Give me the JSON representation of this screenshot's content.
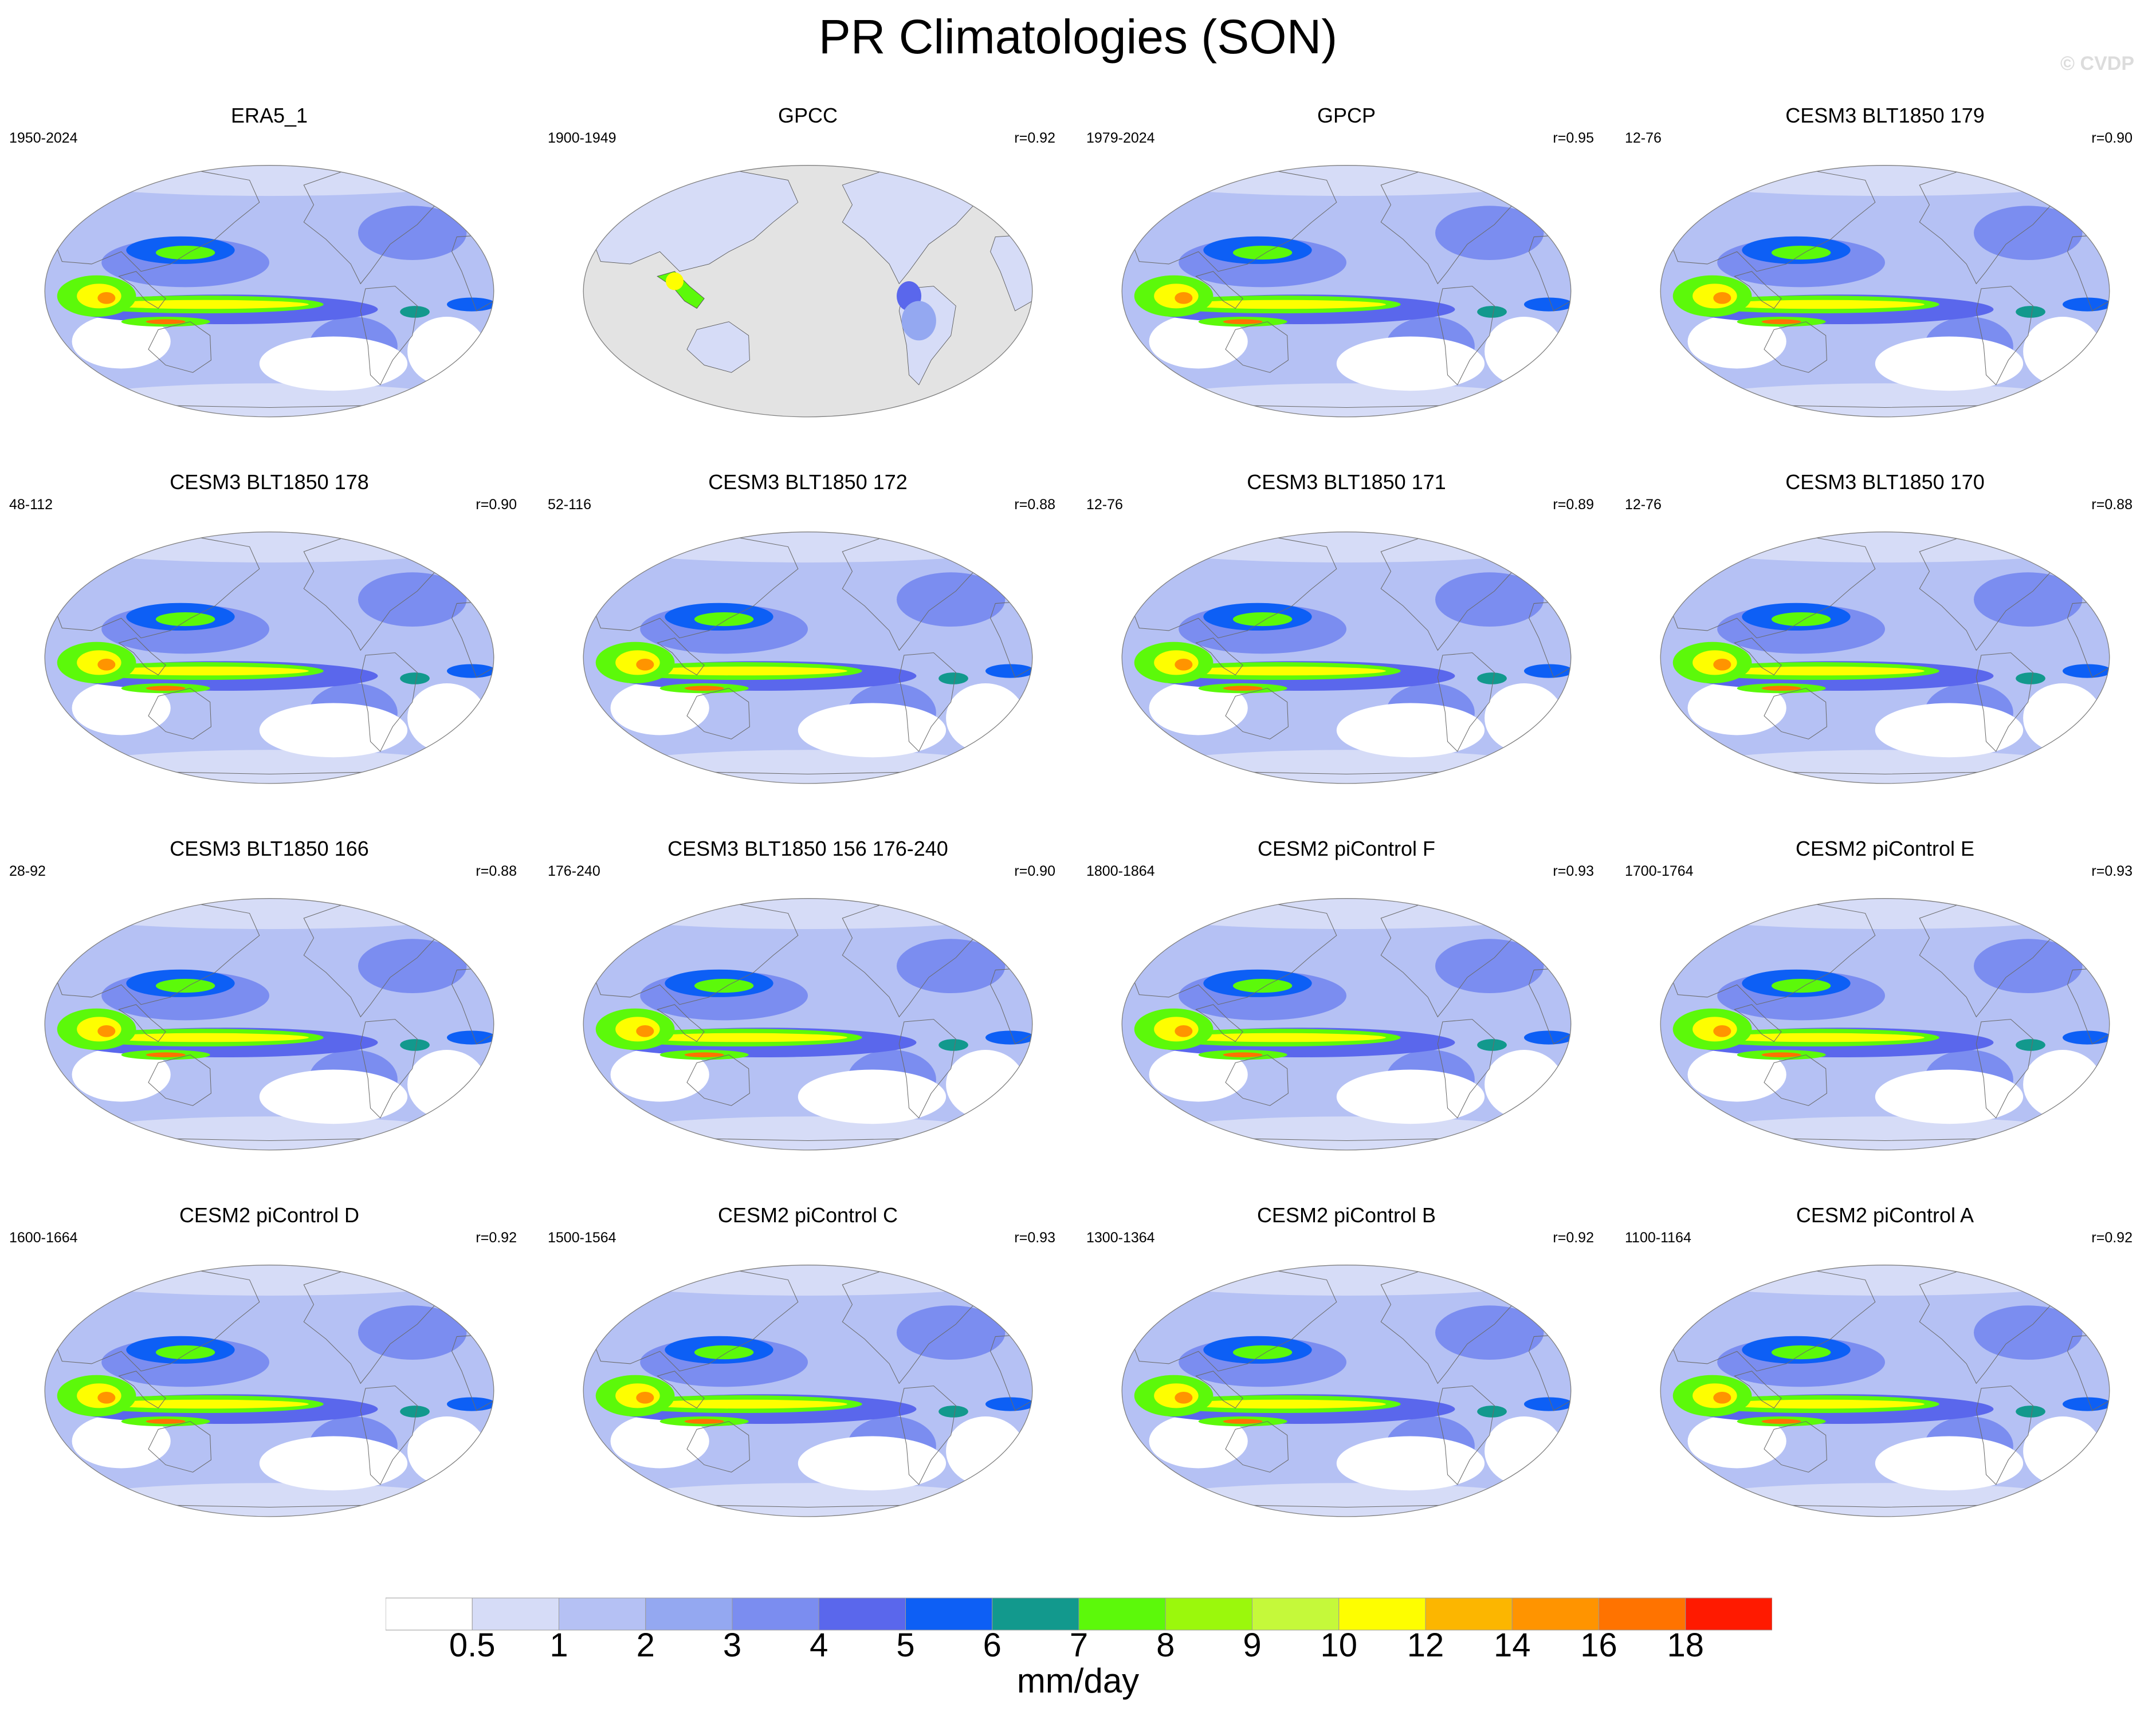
{
  "title": "PR Climatologies (SON)",
  "watermark": "© CVDP",
  "chart_data": {
    "type": "heatmap",
    "title": "PR Climatologies (SON)",
    "variable": "PR",
    "season": "SON",
    "projection": "Robinson (Pacific-centered)",
    "colorbar": {
      "label": "mm/day",
      "levels": [
        "0.5",
        "1",
        "2",
        "3",
        "4",
        "5",
        "6",
        "7",
        "8",
        "9",
        "10",
        "12",
        "14",
        "16",
        "18"
      ],
      "colors": [
        "#ffffff",
        "#d6dcf7",
        "#b5c1f4",
        "#94a8f1",
        "#7b8df0",
        "#5a67ec",
        "#0d5ff5",
        "#12998d",
        "#5cf90a",
        "#9bf80c",
        "#c5f93a",
        "#fefe00",
        "#fcb600",
        "#ff9400",
        "#ff7300",
        "#ff1a00"
      ]
    },
    "panels": [
      {
        "name": "ERA5_1",
        "years": "1950-2024",
        "r": "",
        "kind": "model"
      },
      {
        "name": "GPCC",
        "years": "1900-1949",
        "r": "r=0.92",
        "kind": "land"
      },
      {
        "name": "GPCP",
        "years": "1979-2024",
        "r": "r=0.95",
        "kind": "obs"
      },
      {
        "name": "CESM3 BLT1850 179",
        "years": "12-76",
        "r": "r=0.90",
        "kind": "model"
      },
      {
        "name": "CESM3 BLT1850 178",
        "years": "48-112",
        "r": "r=0.90",
        "kind": "model"
      },
      {
        "name": "CESM3 BLT1850 172",
        "years": "52-116",
        "r": "r=0.88",
        "kind": "model"
      },
      {
        "name": "CESM3 BLT1850 171",
        "years": "12-76",
        "r": "r=0.89",
        "kind": "model"
      },
      {
        "name": "CESM3 BLT1850 170",
        "years": "12-76",
        "r": "r=0.88",
        "kind": "model"
      },
      {
        "name": "CESM3 BLT1850 166",
        "years": "28-92",
        "r": "r=0.88",
        "kind": "model"
      },
      {
        "name": "CESM3 BLT1850 156 176-240",
        "years": "176-240",
        "r": "r=0.90",
        "kind": "model"
      },
      {
        "name": "CESM2 piControl F",
        "years": "1800-1864",
        "r": "r=0.93",
        "kind": "model"
      },
      {
        "name": "CESM2 piControl E",
        "years": "1700-1764",
        "r": "r=0.93",
        "kind": "model"
      },
      {
        "name": "CESM2 piControl D",
        "years": "1600-1664",
        "r": "r=0.92",
        "kind": "model"
      },
      {
        "name": "CESM2 piControl C",
        "years": "1500-1564",
        "r": "r=0.93",
        "kind": "model"
      },
      {
        "name": "CESM2 piControl B",
        "years": "1300-1364",
        "r": "r=0.92",
        "kind": "model"
      },
      {
        "name": "CESM2 piControl A",
        "years": "1100-1164",
        "r": "r=0.92",
        "kind": "model"
      }
    ]
  }
}
